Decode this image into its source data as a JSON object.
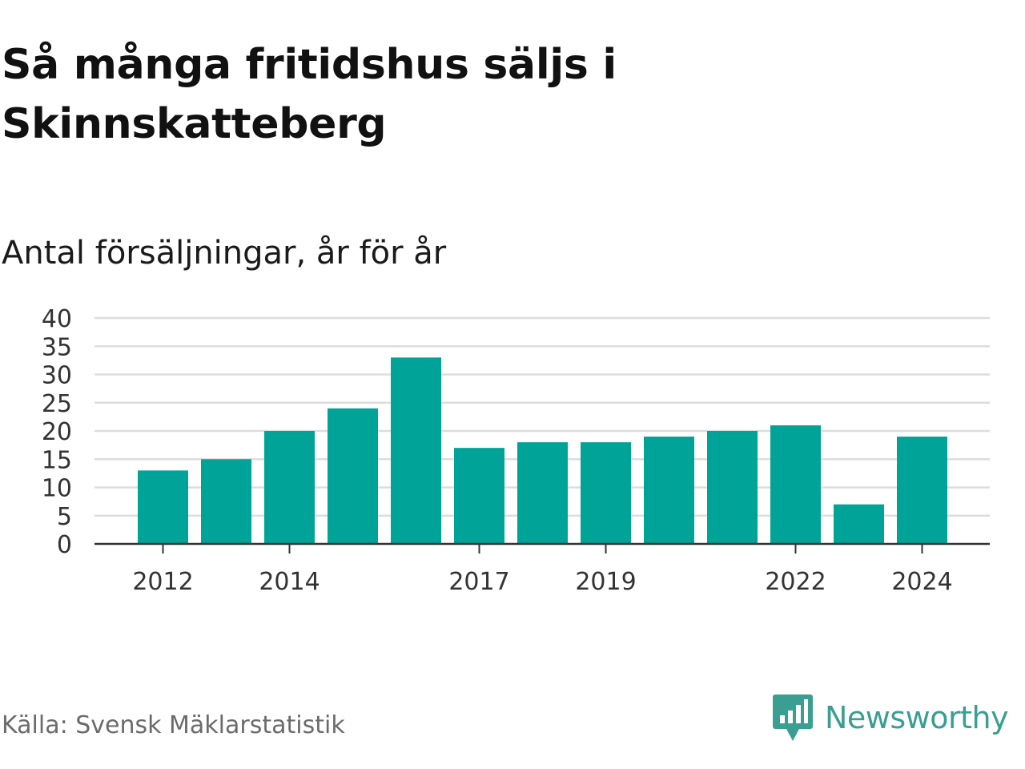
{
  "title": "Så många fritidshus säljs i Skinnskatteberg",
  "subtitle": "Antal försäljningar, år för år",
  "source": "Källa: Svensk Mäklarstatistik",
  "brand": {
    "name": "Newsworthy",
    "icon": "newsworthy-logo-icon",
    "color": "#3a9e92"
  },
  "colors": {
    "bar": "#00a398",
    "grid": "#dddddd",
    "axis": "#333333"
  },
  "chart_data": {
    "type": "bar",
    "categories": [
      "2012",
      "2013",
      "2014",
      "2015",
      "2016",
      "2017",
      "2018",
      "2019",
      "2020",
      "2021",
      "2022",
      "2023",
      "2024"
    ],
    "values": [
      13,
      15,
      20,
      24,
      33,
      17,
      18,
      18,
      19,
      20,
      21,
      7,
      19
    ],
    "x_tick_labels": [
      "2012",
      "2014",
      "2017",
      "2019",
      "2022",
      "2024"
    ],
    "y_ticks": [
      0,
      5,
      10,
      15,
      20,
      25,
      30,
      35,
      40
    ],
    "ylim": [
      0,
      40
    ],
    "grid": true,
    "legend": "none",
    "xlabel": "",
    "ylabel": ""
  }
}
